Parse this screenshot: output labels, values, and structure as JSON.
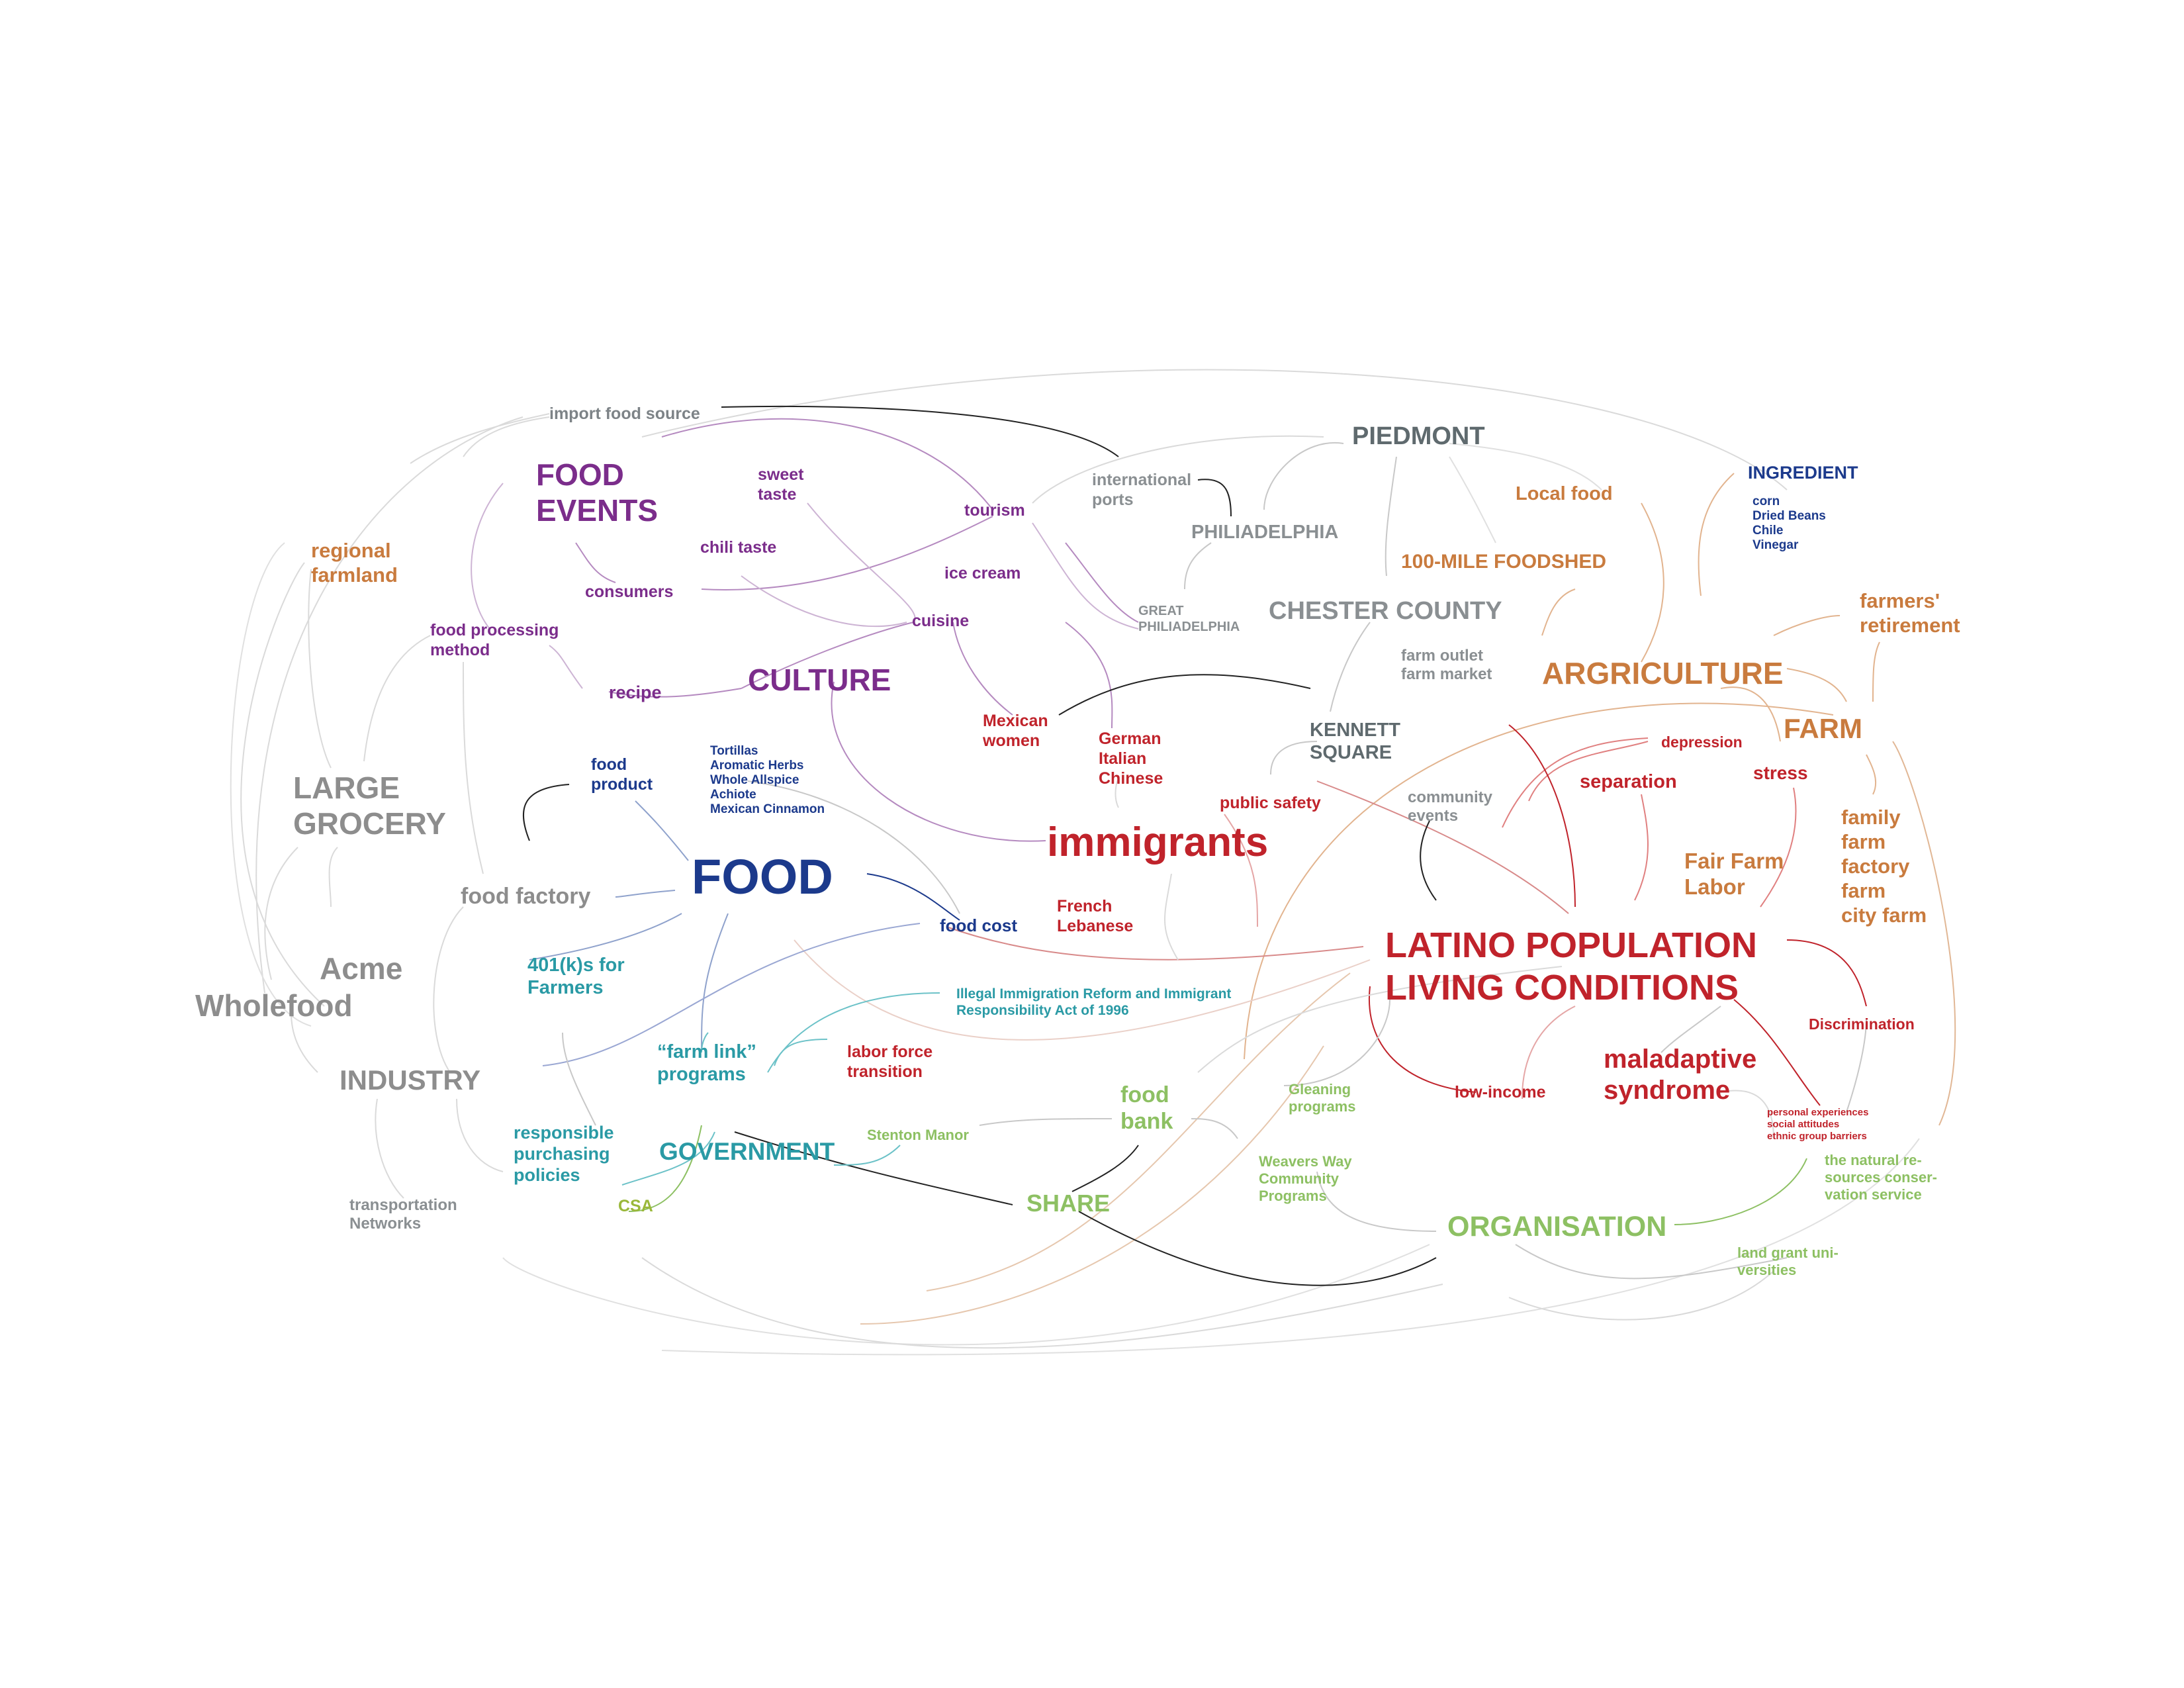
{
  "colors": {
    "culture_purple": "#7b2d8b",
    "food_blue": "#1c3a8c",
    "latino_red": "#c0232b",
    "agriculture_orange": "#c97b3e",
    "government_teal": "#2a9aa5",
    "organisation_green": "#8dc063",
    "place_slate": "#5f6a6e",
    "industry_gray": "#8d8d8d",
    "edge_light": "#d9d9d9",
    "edge_dark": "#222222"
  },
  "nodes": [
    {
      "id": "import_food_source",
      "text": "import food source",
      "color": "#7d8387",
      "size": 25
    },
    {
      "id": "food_events",
      "text": "FOOD\nEVENTS",
      "color": "#7b2d8b",
      "size": 46
    },
    {
      "id": "sweet_taste",
      "text": "sweet\ntaste",
      "color": "#7b2d8b",
      "size": 25
    },
    {
      "id": "tourism",
      "text": "tourism",
      "color": "#7b2d8b",
      "size": 25
    },
    {
      "id": "international_ports",
      "text": "international\nports",
      "color": "#8a8f92",
      "size": 25
    },
    {
      "id": "piedmont",
      "text": "PIEDMONT",
      "color": "#5f6a6e",
      "size": 38
    },
    {
      "id": "local_food",
      "text": "Local food",
      "color": "#c97b3e",
      "size": 29
    },
    {
      "id": "ingredient",
      "text": "INGREDIENT",
      "color": "#1c3a8c",
      "size": 27
    },
    {
      "id": "ingredient_list",
      "text": "corn\nDried Beans\nChile\nVinegar",
      "color": "#1c3a8c",
      "size": 19
    },
    {
      "id": "regional_farmland",
      "text": "regional\nfarmland",
      "color": "#c97b3e",
      "size": 31
    },
    {
      "id": "chili_taste",
      "text": "chili taste",
      "color": "#7b2d8b",
      "size": 25
    },
    {
      "id": "philiadelphia",
      "text": "PHILIADELPHIA",
      "color": "#8a8f92",
      "size": 29
    },
    {
      "id": "consumers",
      "text": "consumers",
      "color": "#7b2d8b",
      "size": 25
    },
    {
      "id": "ice_cream",
      "text": "ice cream",
      "color": "#7b2d8b",
      "size": 25
    },
    {
      "id": "hundred_mile_foodshed",
      "text": "100-MILE FOODSHED",
      "color": "#c97b3e",
      "size": 30
    },
    {
      "id": "great_philiadelphia",
      "text": "GREAT\nPHILIADELPHIA",
      "color": "#8a8f92",
      "size": 20
    },
    {
      "id": "chester_county",
      "text": "CHESTER COUNTY",
      "color": "#8a8f92",
      "size": 38
    },
    {
      "id": "farmers_retirement",
      "text": "farmers'\nretirement",
      "color": "#c97b3e",
      "size": 31
    },
    {
      "id": "food_processing_method",
      "text": "food processing\nmethod",
      "color": "#7b2d8b",
      "size": 25
    },
    {
      "id": "cuisine",
      "text": "cuisine",
      "color": "#7b2d8b",
      "size": 25
    },
    {
      "id": "farm_outlet",
      "text": "farm outlet\nfarm market",
      "color": "#8a8f92",
      "size": 24
    },
    {
      "id": "recipe",
      "text": "recipe",
      "color": "#7b2d8b",
      "size": 27
    },
    {
      "id": "culture",
      "text": "CULTURE",
      "color": "#7b2d8b",
      "size": 46
    },
    {
      "id": "argriculture",
      "text": "ARGRICULTURE",
      "color": "#c97b3e",
      "size": 46
    },
    {
      "id": "mexican_women",
      "text": "Mexican\nwomen",
      "color": "#c0232b",
      "size": 25
    },
    {
      "id": "kennett_square",
      "text": "KENNETT\nSQUARE",
      "color": "#5f6a6e",
      "size": 29
    },
    {
      "id": "farm",
      "text": "FARM",
      "color": "#c97b3e",
      "size": 42
    },
    {
      "id": "depression",
      "text": "depression",
      "color": "#c0232b",
      "size": 23
    },
    {
      "id": "german_italian",
      "text": "German\nItalian\nChinese",
      "color": "#c0232b",
      "size": 25
    },
    {
      "id": "food_product",
      "text": "food\nproduct",
      "color": "#1c3a8c",
      "size": 25
    },
    {
      "id": "food_product_list",
      "text": "Tortillas\nAromatic Herbs\nWhole Allspice\nAchiote\nMexican Cinnamon",
      "color": "#1c3a8c",
      "size": 19
    },
    {
      "id": "large_grocery",
      "text": "LARGE\nGROCERY",
      "color": "#8d8d8d",
      "size": 46
    },
    {
      "id": "separation",
      "text": "separation",
      "color": "#c0232b",
      "size": 29
    },
    {
      "id": "stress",
      "text": "stress",
      "color": "#c0232b",
      "size": 28
    },
    {
      "id": "public_safety",
      "text": "public safety",
      "color": "#c0232b",
      "size": 25
    },
    {
      "id": "community_events",
      "text": "community\nevents",
      "color": "#8a8f92",
      "size": 24
    },
    {
      "id": "family_farm",
      "text": "family\nfarm\nfactory\nfarm\ncity farm",
      "color": "#c97b3e",
      "size": 31
    },
    {
      "id": "food",
      "text": "FOOD",
      "color": "#1c3a8c",
      "size": 74
    },
    {
      "id": "immigrants",
      "text": "immigrants",
      "color": "#c0232b",
      "size": 62
    },
    {
      "id": "fair_farm_labor",
      "text": "Fair Farm\nLabor",
      "color": "#c97b3e",
      "size": 33
    },
    {
      "id": "food_factory",
      "text": "food factory",
      "color": "#8d8d8d",
      "size": 34
    },
    {
      "id": "french_lebanese",
      "text": "French\nLebanese",
      "color": "#c0232b",
      "size": 25
    },
    {
      "id": "food_cost",
      "text": "food cost",
      "color": "#1c3a8c",
      "size": 26
    },
    {
      "id": "latino_population",
      "text": "LATINO POPULATION\nLIVING CONDITIONS",
      "color": "#c0232b",
      "size": 54
    },
    {
      "id": "acme",
      "text": "Acme",
      "color": "#8d8d8d",
      "size": 46
    },
    {
      "id": "fourohonek",
      "text": "401(k)s for\nFarmers",
      "color": "#2a9aa5",
      "size": 29
    },
    {
      "id": "wholefood",
      "text": "Wholefood",
      "color": "#8d8d8d",
      "size": 46
    },
    {
      "id": "illegal_immigration",
      "text": "Illegal Immigration Reform and Immigrant\nResponsibility Act of 1996",
      "color": "#2a9aa5",
      "size": 21
    },
    {
      "id": "discrimination",
      "text": "Discrimination",
      "color": "#c0232b",
      "size": 23
    },
    {
      "id": "farm_link",
      "text": "“farm link”\nprograms",
      "color": "#2a9aa5",
      "size": 29
    },
    {
      "id": "labor_force",
      "text": "labor force\ntransition",
      "color": "#c0232b",
      "size": 25
    },
    {
      "id": "industry",
      "text": "INDUSTRY",
      "color": "#8d8d8d",
      "size": 42
    },
    {
      "id": "food_bank",
      "text": "food\nbank",
      "color": "#8dc063",
      "size": 34
    },
    {
      "id": "gleaning",
      "text": "Gleaning\nprograms",
      "color": "#8dc063",
      "size": 22
    },
    {
      "id": "low_income",
      "text": "low-income",
      "color": "#c0232b",
      "size": 25
    },
    {
      "id": "maladaptive",
      "text": "maladaptive\nsyndrome",
      "color": "#c0232b",
      "size": 40
    },
    {
      "id": "personal_experiences",
      "text": "personal experiences\nsocial attitudes\nethnic group barriers",
      "color": "#c0232b",
      "size": 15
    },
    {
      "id": "responsible",
      "text": "responsible\npurchasing\npolicies",
      "color": "#2a9aa5",
      "size": 27
    },
    {
      "id": "stenton_manor",
      "text": "Stenton Manor",
      "color": "#8dc063",
      "size": 22
    },
    {
      "id": "government",
      "text": "GOVERNMENT",
      "color": "#2a9aa5",
      "size": 37
    },
    {
      "id": "weavers_way",
      "text": "Weavers Way\nCommunity\nPrograms",
      "color": "#8dc063",
      "size": 22
    },
    {
      "id": "natural_resources",
      "text": "the natural re-\nsources conser-\nvation service",
      "color": "#8dc063",
      "size": 22
    },
    {
      "id": "transportation",
      "text": "transportation\nNetworks",
      "color": "#8a8f92",
      "size": 24
    },
    {
      "id": "csa",
      "text": "CSA",
      "color": "#9ab83a",
      "size": 25
    },
    {
      "id": "share",
      "text": "SHARE",
      "color": "#8dc063",
      "size": 36
    },
    {
      "id": "organisation",
      "text": "ORGANISATION",
      "color": "#8dc063",
      "size": 43
    },
    {
      "id": "land_grant",
      "text": "land grant uni-\nversities",
      "color": "#8dc063",
      "size": 22
    }
  ]
}
